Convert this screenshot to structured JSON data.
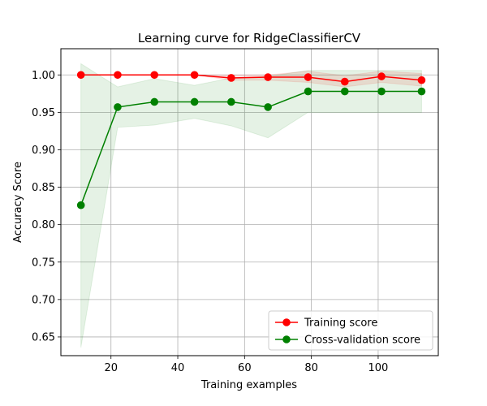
{
  "chart_data": {
    "type": "line",
    "title": "Learning curve for RidgeClassifierCV",
    "xlabel": "Training examples",
    "ylabel": "Accuracy Score",
    "xlim": [
      5,
      118
    ],
    "ylim": [
      0.625,
      1.035
    ],
    "xticks": [
      20,
      40,
      60,
      80,
      100
    ],
    "yticks": [
      0.65,
      0.7,
      0.75,
      0.8,
      0.85,
      0.9,
      0.95,
      1.0
    ],
    "grid": true,
    "legend_position": "lower-right",
    "x": [
      11,
      22,
      33,
      45,
      56,
      67,
      79,
      90,
      101,
      113
    ],
    "series": [
      {
        "name": "Training score",
        "color": "#ff0000",
        "values": [
          1.0,
          1.0,
          1.0,
          1.0,
          0.996,
          0.997,
          0.997,
          0.991,
          0.998,
          0.993
        ],
        "band_lower": [
          1.0,
          1.0,
          1.0,
          1.0,
          0.993,
          0.993,
          0.99,
          0.984,
          0.99,
          0.985
        ],
        "band_upper": [
          1.0,
          1.0,
          1.0,
          1.0,
          1.0,
          1.0,
          1.005,
          0.999,
          1.005,
          1.002
        ]
      },
      {
        "name": "Cross-validation score",
        "color": "#008000",
        "values": [
          0.826,
          0.957,
          0.964,
          0.964,
          0.964,
          0.957,
          0.978,
          0.978,
          0.978,
          0.978
        ],
        "band_lower": [
          0.636,
          0.93,
          0.933,
          0.942,
          0.932,
          0.916,
          0.95,
          0.95,
          0.95,
          0.95
        ],
        "band_upper": [
          1.015,
          0.984,
          0.995,
          0.986,
          0.996,
          0.998,
          1.006,
          1.006,
          1.006,
          1.006
        ]
      }
    ]
  }
}
